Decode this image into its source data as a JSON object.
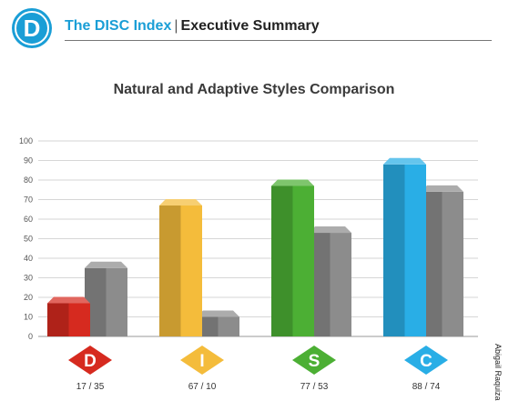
{
  "header": {
    "logo_letter": "D",
    "brand": "The DISC Index",
    "separator": "|",
    "section": "Executive Summary"
  },
  "author": "Abigail Raquiza",
  "colors": {
    "brand": "#1a9ed6",
    "D": "#d62a1f",
    "I": "#f4bc3b",
    "S": "#4caf34",
    "C": "#29aee6",
    "adaptive": "#8c8c8c"
  },
  "chart_data": {
    "type": "bar",
    "title": "Natural and Adaptive Styles Comparison",
    "xlabel": "",
    "ylabel": "",
    "ylim": [
      0,
      100
    ],
    "yticks": [
      0,
      10,
      20,
      30,
      40,
      50,
      60,
      70,
      80,
      90,
      100
    ],
    "grid": true,
    "categories": [
      "D",
      "I",
      "S",
      "C"
    ],
    "category_labels": [
      "17 / 35",
      "67 / 10",
      "77 / 53",
      "88 / 74"
    ],
    "series": [
      {
        "values": [
          17,
          67,
          77,
          88
        ]
      },
      {
        "values": [
          35,
          10,
          53,
          74
        ]
      }
    ]
  }
}
